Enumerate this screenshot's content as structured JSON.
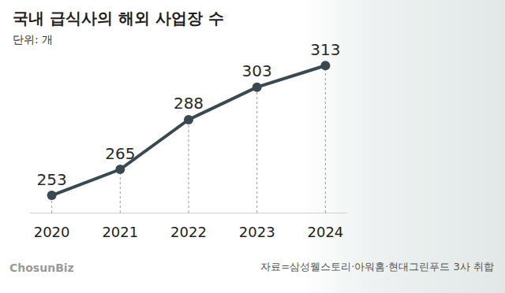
{
  "chart_data": {
    "type": "line",
    "title": "국내 급식사의 해외 사업장 수",
    "subtitle": "단위: 개",
    "categories": [
      "2020",
      "2021",
      "2022",
      "2023",
      "2024"
    ],
    "values": [
      253,
      265,
      288,
      303,
      313
    ],
    "color": "#3a4850",
    "marker": "circle",
    "ylim": [
      245,
      320
    ],
    "yticks": [],
    "grid": false,
    "data_labels": true,
    "tick_labels": "x",
    "annotations": [
      "ChosunBiz",
      "자료=삼성웰스토리·아워홈·현대그린푸드 3사 취합"
    ]
  }
}
